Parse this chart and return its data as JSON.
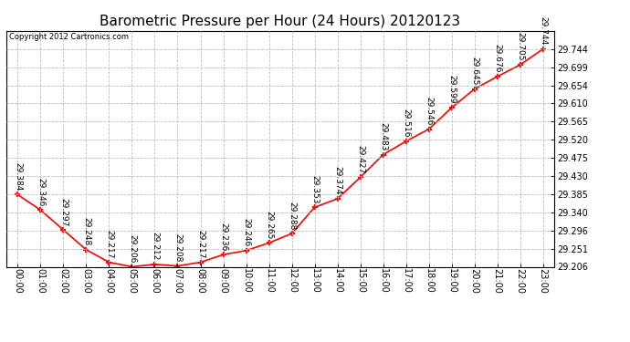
{
  "title": "Barometric Pressure per Hour (24 Hours) 20120123",
  "copyright_text": "Copyright 2012 Cartronics.com",
  "hours": [
    "00:00",
    "01:00",
    "02:00",
    "03:00",
    "04:00",
    "05:00",
    "06:00",
    "07:00",
    "08:00",
    "09:00",
    "10:00",
    "11:00",
    "12:00",
    "13:00",
    "14:00",
    "15:00",
    "16:00",
    "17:00",
    "18:00",
    "19:00",
    "20:00",
    "21:00",
    "22:00",
    "23:00"
  ],
  "values": [
    29.384,
    29.346,
    29.297,
    29.248,
    29.217,
    29.206,
    29.212,
    29.208,
    29.217,
    29.236,
    29.246,
    29.265,
    29.288,
    29.353,
    29.374,
    29.427,
    29.483,
    29.516,
    29.546,
    29.599,
    29.645,
    29.676,
    29.705,
    29.744
  ],
  "line_color": "#ff0000",
  "marker_color": "#ff0000",
  "bg_color": "#ffffff",
  "plot_bg_color": "#ffffff",
  "grid_color": "#bbbbbb",
  "title_fontsize": 11,
  "tick_fontsize": 7,
  "label_fontsize": 6.5,
  "ylim_min": 29.206,
  "ylim_max": 29.789,
  "ytick_values": [
    29.206,
    29.251,
    29.296,
    29.34,
    29.385,
    29.43,
    29.475,
    29.52,
    29.565,
    29.61,
    29.654,
    29.699,
    29.744
  ]
}
